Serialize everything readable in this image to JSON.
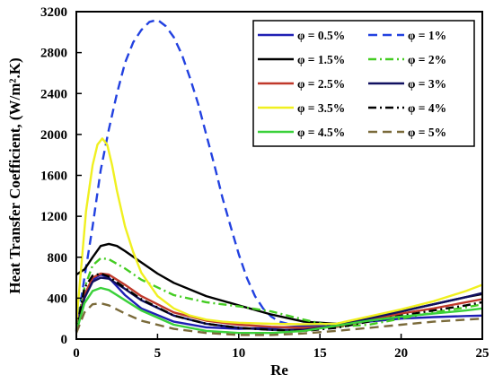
{
  "chart_data": {
    "type": "line",
    "title": "",
    "xlabel": "Re",
    "ylabel": "Heat Transfer Coefficient, (W/m².K)",
    "xlim": [
      0,
      25
    ],
    "ylim": [
      0,
      3200
    ],
    "xticks": [
      0,
      5,
      10,
      15,
      20,
      25
    ],
    "yticks": [
      0,
      400,
      800,
      1200,
      1600,
      2000,
      2400,
      2800,
      3200
    ],
    "grid": false,
    "legend_position": "top-right",
    "series": [
      {
        "name": "φ = 0.5%",
        "color": "#1f1fb4",
        "dash": "solid",
        "x": [
          0,
          0.5,
          1.0,
          1.5,
          2.0,
          3.0,
          4.0,
          6.0,
          8.0,
          10.0,
          12.0,
          14.0,
          16.0,
          18.0,
          20.0,
          22.0,
          24.0,
          25.0
        ],
        "y": [
          70,
          400,
          580,
          630,
          600,
          430,
          300,
          170,
          115,
          100,
          110,
          125,
          140,
          170,
          200,
          215,
          225,
          230
        ]
      },
      {
        "name": "φ = 1%",
        "color": "#2241e0",
        "dash": "dashed",
        "x": [
          0,
          0.5,
          1.0,
          1.5,
          2.0,
          2.5,
          3.0,
          3.5,
          4.0,
          4.5,
          5.0,
          5.5,
          6.0,
          6.5,
          7.0,
          7.5,
          8.0,
          8.5,
          9.0,
          9.5,
          10.0,
          10.5,
          11.0,
          11.5,
          12.0,
          12.5,
          13.0
        ],
        "y": [
          90,
          600,
          1100,
          1650,
          2050,
          2400,
          2700,
          2900,
          3020,
          3100,
          3120,
          3060,
          2950,
          2780,
          2550,
          2300,
          2000,
          1700,
          1380,
          1100,
          830,
          600,
          420,
          300,
          220,
          170,
          150
        ]
      },
      {
        "name": "φ = 1.5%",
        "color": "#000000",
        "dash": "solid",
        "x": [
          0,
          0.5,
          1.0,
          1.5,
          2.0,
          2.5,
          3.0,
          4.0,
          5.0,
          6.0,
          8.0,
          10.0,
          12.0,
          14.0,
          16.0,
          18.0,
          20.0,
          22.0,
          24.0,
          25.0
        ],
        "y": [
          630,
          680,
          800,
          910,
          930,
          910,
          860,
          750,
          640,
          550,
          420,
          330,
          240,
          170,
          150,
          200,
          270,
          340,
          410,
          440
        ]
      },
      {
        "name": "φ = 2%",
        "color": "#44cc22",
        "dash": "dashdot",
        "x": [
          0,
          0.5,
          1.0,
          1.5,
          2.0,
          3.0,
          4.0,
          6.0,
          8.0,
          10.0,
          12.0,
          14.0,
          16.0,
          18.0,
          20.0,
          22.0,
          24.0,
          25.0
        ],
        "y": [
          100,
          500,
          720,
          790,
          780,
          690,
          580,
          430,
          360,
          320,
          270,
          190,
          120,
          140,
          200,
          260,
          310,
          340
        ]
      },
      {
        "name": "φ = 2.5%",
        "color": "#c0392b",
        "dash": "solid",
        "x": [
          0,
          0.5,
          1.0,
          1.5,
          2.0,
          3.0,
          4.0,
          6.0,
          8.0,
          10.0,
          12.0,
          14.0,
          16.0,
          18.0,
          20.0,
          22.0,
          24.0,
          25.0
        ],
        "y": [
          90,
          430,
          600,
          640,
          630,
          530,
          420,
          260,
          180,
          140,
          120,
          110,
          120,
          180,
          250,
          300,
          360,
          390
        ]
      },
      {
        "name": "φ = 3%",
        "color": "#101060",
        "dash": "solid",
        "x": [
          0,
          0.5,
          1.0,
          1.5,
          2.0,
          3.0,
          4.0,
          6.0,
          8.0,
          10.0,
          12.0,
          14.0,
          16.0,
          18.0,
          20.0,
          22.0,
          24.0,
          25.0
        ],
        "y": [
          80,
          400,
          560,
          600,
          590,
          490,
          380,
          230,
          150,
          110,
          90,
          90,
          130,
          200,
          270,
          340,
          410,
          450
        ]
      },
      {
        "name": "φ = 3.5%",
        "color": "#f0f020",
        "dash": "solid",
        "x": [
          0,
          0.3,
          0.6,
          1.0,
          1.3,
          1.6,
          1.9,
          2.2,
          2.5,
          3.0,
          3.5,
          4.0,
          5.0,
          6.0,
          7.0,
          8.0,
          9.0,
          10.0,
          12.0,
          14.0,
          16.0,
          18.0,
          20.0,
          22.0,
          24.0,
          25.0
        ],
        "y": [
          150,
          700,
          1250,
          1700,
          1900,
          1960,
          1900,
          1700,
          1450,
          1100,
          850,
          650,
          420,
          300,
          230,
          190,
          170,
          160,
          150,
          145,
          150,
          220,
          290,
          370,
          470,
          530
        ]
      },
      {
        "name": "φ = 4%",
        "color": "#000000",
        "dash": "dashdot",
        "x": [
          0,
          0.5,
          1.0,
          1.5,
          2.0,
          3.0,
          4.0,
          6.0,
          8.0,
          10.0,
          12.0,
          14.0,
          16.0,
          18.0,
          20.0,
          22.0,
          24.0,
          25.0
        ],
        "y": [
          80,
          500,
          620,
          640,
          610,
          500,
          390,
          230,
          150,
          110,
          90,
          80,
          110,
          170,
          230,
          280,
          330,
          360
        ]
      },
      {
        "name": "φ = 4.5%",
        "color": "#3ad13a",
        "dash": "solid",
        "x": [
          0,
          0.5,
          1.0,
          1.5,
          2.0,
          3.0,
          4.0,
          6.0,
          8.0,
          10.0,
          12.0,
          14.0,
          16.0,
          18.0,
          20.0,
          22.0,
          24.0,
          25.0
        ],
        "y": [
          70,
          350,
          470,
          500,
          480,
          380,
          280,
          140,
          80,
          60,
          60,
          80,
          130,
          180,
          220,
          250,
          280,
          300
        ]
      },
      {
        "name": "φ = 5%",
        "color": "#7a6a3a",
        "dash": "dashed",
        "x": [
          0,
          0.5,
          1.0,
          1.5,
          2.0,
          3.0,
          4.0,
          6.0,
          8.0,
          10.0,
          12.0,
          14.0,
          16.0,
          18.0,
          20.0,
          22.0,
          24.0,
          25.0
        ],
        "y": [
          60,
          260,
          340,
          350,
          330,
          250,
          180,
          100,
          60,
          40,
          40,
          55,
          80,
          110,
          140,
          170,
          190,
          200
        ]
      }
    ]
  }
}
